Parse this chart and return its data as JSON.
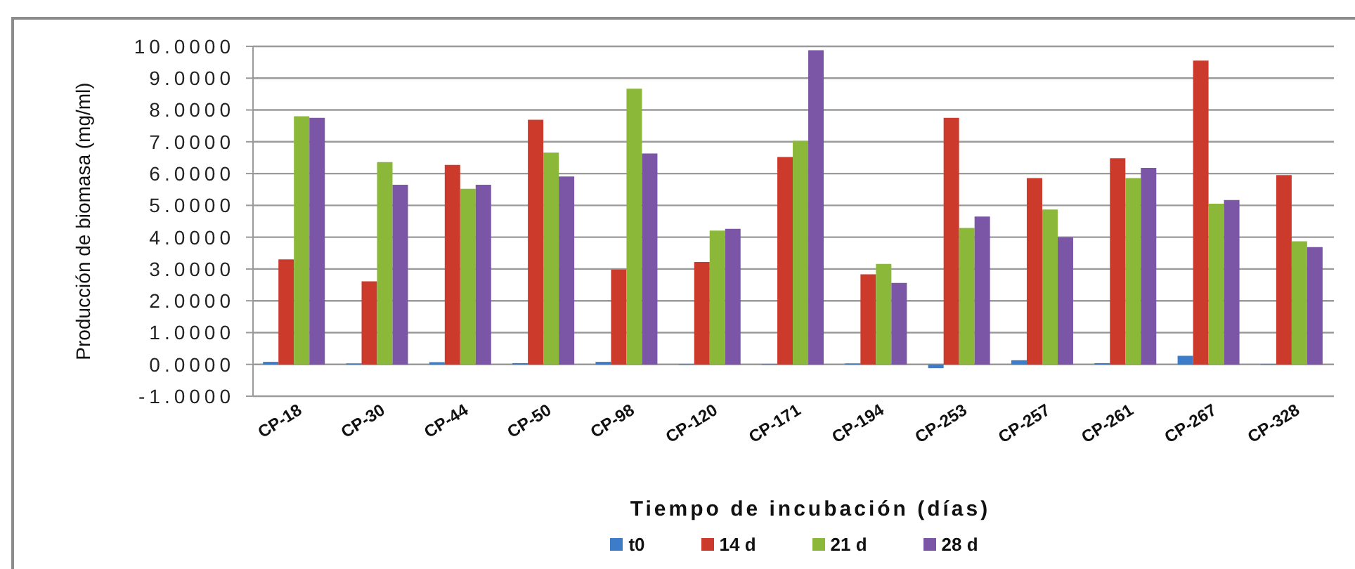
{
  "chart_data": {
    "type": "bar",
    "xlabel": "Tiempo de incubación (días)",
    "ylabel": "Producción de biomasa (mg/ml)",
    "categories": [
      "CP-18",
      "CP-30",
      "CP-44",
      "CP-50",
      "CP-98",
      "CP-120",
      "CP-171",
      "CP-194",
      "CP-253",
      "CP-257",
      "CP-261",
      "CP-267",
      "CP-328"
    ],
    "series": [
      {
        "name": "t0",
        "color": "#3d7cc9",
        "values": [
          0.08,
          0.03,
          0.07,
          0.04,
          0.08,
          -0.02,
          -0.02,
          0.03,
          -0.12,
          0.13,
          0.04,
          0.27,
          -0.02
        ]
      },
      {
        "name": "14 d",
        "color": "#cc3a2c",
        "values": [
          3.3,
          2.61,
          6.27,
          7.69,
          2.98,
          3.22,
          6.52,
          2.83,
          7.75,
          5.86,
          6.48,
          9.55,
          5.95
        ]
      },
      {
        "name": "21 d",
        "color": "#8cb83a",
        "values": [
          7.8,
          6.36,
          5.52,
          6.66,
          8.67,
          4.21,
          7.03,
          3.16,
          4.29,
          4.87,
          5.86,
          5.05,
          3.87
        ]
      },
      {
        "name": "28 d",
        "color": "#7b55a6",
        "values": [
          7.75,
          5.65,
          5.65,
          5.91,
          6.63,
          4.26,
          9.88,
          2.56,
          4.65,
          4.0,
          6.18,
          5.17,
          3.69
        ]
      }
    ],
    "ylim": [
      -1,
      10
    ],
    "yticks": [
      {
        "value": -1,
        "label": "-1.0000"
      },
      {
        "value": 0,
        "label": "0.0000"
      },
      {
        "value": 1,
        "label": "1.0000"
      },
      {
        "value": 2,
        "label": "2.0000"
      },
      {
        "value": 3,
        "label": "3.0000"
      },
      {
        "value": 4,
        "label": "4.0000"
      },
      {
        "value": 5,
        "label": "5.0000"
      },
      {
        "value": 6,
        "label": "6.0000"
      },
      {
        "value": 7,
        "label": "7.0000"
      },
      {
        "value": 8,
        "label": "8.0000"
      },
      {
        "value": 9,
        "label": "9.0000"
      },
      {
        "value": 10,
        "label": "10.0000"
      }
    ],
    "grid": "y",
    "legend": "bottom"
  }
}
